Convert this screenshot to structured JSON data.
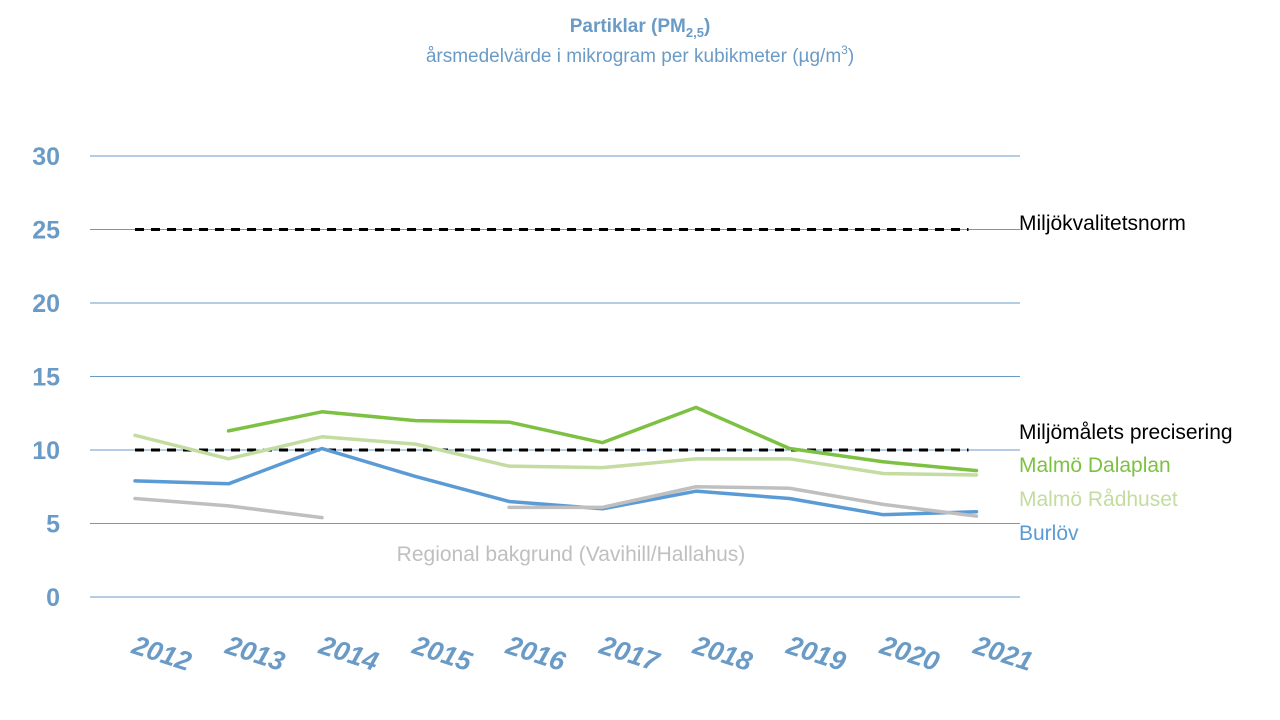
{
  "colors": {
    "title": "#6A9BC7",
    "axis_text": "#6A9BC7",
    "grid": "#6A9BC7",
    "dalaplan": "#7DC142",
    "radhuset": "#C3DCA0",
    "burlov": "#5B9BD5",
    "regional": "#BFBFBF",
    "reference": "#000000"
  },
  "chart_data": {
    "type": "line",
    "title_main": "Partiklar (PM",
    "title_sub_script": "2,5",
    "title_close": ")",
    "subtitle_main": "årsmedelvärde i mikrogram per kubikmeter (µg/m",
    "subtitle_sup_script": "3",
    "subtitle_close": ")",
    "xlabel": "",
    "ylabel": "",
    "ylim": [
      0,
      30
    ],
    "yticks": [
      "0",
      "5",
      "10",
      "15",
      "20",
      "25",
      "30"
    ],
    "categories": [
      "2012",
      "2013",
      "2014",
      "2015",
      "2016",
      "2017",
      "2018",
      "2019",
      "2020",
      "2021"
    ],
    "grid": true,
    "series": [
      {
        "name": "Malmö Dalaplan",
        "color_key": "dalaplan",
        "values": [
          null,
          11.3,
          12.6,
          12.0,
          11.9,
          10.5,
          12.9,
          10.1,
          9.2,
          8.6
        ]
      },
      {
        "name": "Malmö Rådhuset",
        "color_key": "radhuset",
        "values": [
          11.0,
          9.4,
          10.9,
          10.4,
          8.9,
          8.8,
          9.4,
          9.4,
          8.4,
          8.3
        ]
      },
      {
        "name": "Burlöv",
        "color_key": "burlov",
        "values": [
          7.9,
          7.7,
          10.1,
          8.2,
          6.5,
          6.0,
          7.2,
          6.7,
          5.6,
          5.8
        ]
      },
      {
        "name": "Regional bakgrund (Vavihill/Hallahus)",
        "color_key": "regional",
        "values": [
          6.7,
          6.2,
          5.4,
          null,
          6.1,
          6.1,
          7.5,
          7.4,
          6.3,
          5.5
        ]
      }
    ],
    "reference_lines": [
      {
        "name": "Miljökvalitetsnorm",
        "value": 25
      },
      {
        "name": "Miljömålets precisering",
        "value": 10
      }
    ]
  }
}
